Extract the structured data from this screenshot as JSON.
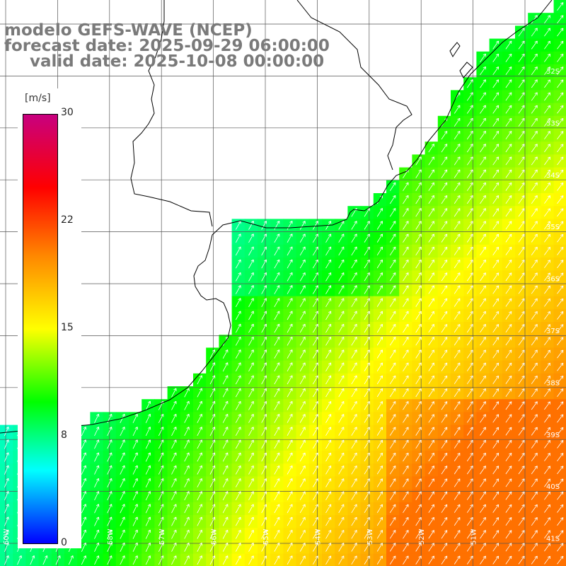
{
  "titles": {
    "model": "modelo GEFS-WAVE (NCEP)",
    "forecast": "forecast date: 2025-09-29 06:00:00",
    "valid": "valid date: 2025-10-08 00:00:00"
  },
  "colorbar": {
    "unit": "[m/s]",
    "ticks": [
      "30",
      "22",
      "15",
      "8",
      "0"
    ],
    "values": [
      30,
      22,
      15,
      8,
      0
    ],
    "colors": [
      "#c8007f",
      "#ff0000",
      "#ff8800",
      "#ffff00",
      "#00ff00",
      "#00ffff",
      "#0000ff"
    ]
  },
  "axes": {
    "lon_labels": [
      "60W",
      "59W",
      "58W",
      "57W",
      "56W",
      "55W",
      "54W",
      "53W",
      "52W",
      "51W"
    ],
    "lat_labels": [
      "32S",
      "33S",
      "34S",
      "35S",
      "36S",
      "37S",
      "38S",
      "39S",
      "40S",
      "41S"
    ]
  },
  "field": {
    "variable": "wind speed",
    "units": "m/s",
    "range": [
      0,
      30
    ]
  }
}
